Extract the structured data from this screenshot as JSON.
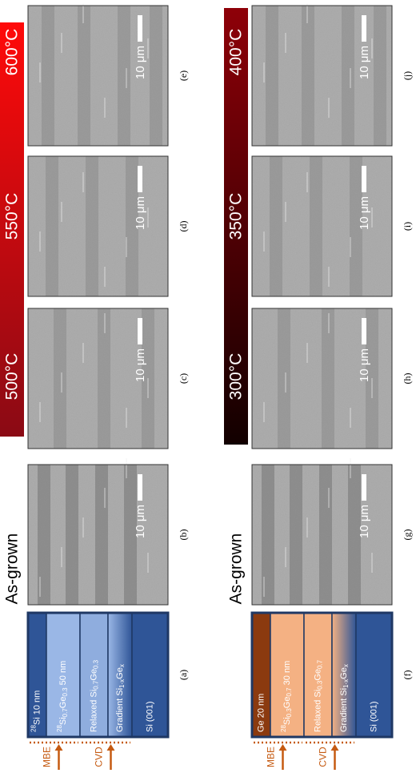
{
  "rows": [
    {
      "as_grown": "As-grown",
      "temperatures": [
        "500°C",
        "550°C",
        "600°C"
      ],
      "growth": [
        "MBE",
        "CVD"
      ],
      "schematic": {
        "label": "(a)",
        "layers": [
          {
            "parts": [
              {
                "t": "28",
                "s": "sup"
              },
              {
                "t": "Si   10 nm"
              }
            ]
          },
          {
            "parts": [
              {
                "t": "28",
                "s": "sup"
              },
              {
                "t": "Si"
              },
              {
                "t": "0.7",
                "s": "sub"
              },
              {
                "t": "Ge"
              },
              {
                "t": "0.3",
                "s": "sub"
              },
              {
                "t": "  50 nm"
              }
            ]
          },
          {
            "parts": [
              {
                "t": "Relaxed Si"
              },
              {
                "t": "0.7",
                "s": "sub"
              },
              {
                "t": "Ge"
              },
              {
                "t": "0.3",
                "s": "sub"
              }
            ]
          },
          {
            "parts": [
              {
                "t": "Gradient Si"
              },
              {
                "t": "1-x",
                "s": "sub"
              },
              {
                "t": "Ge"
              },
              {
                "t": "x",
                "s": "sub"
              }
            ]
          },
          {
            "parts": [
              {
                "t": "Si (001)"
              }
            ]
          }
        ]
      },
      "panels": [
        {
          "label": "(b)",
          "scale": "10 μm"
        },
        {
          "label": "(c)",
          "scale": "10 μm"
        },
        {
          "label": "(d)",
          "scale": "10 μm"
        },
        {
          "label": "(e)",
          "scale": "10 μm"
        }
      ]
    },
    {
      "as_grown": "As-grown",
      "temperatures": [
        "300°C",
        "350°C",
        "400°C"
      ],
      "growth": [
        "MBE",
        "CVD"
      ],
      "schematic": {
        "label": "(f)",
        "layers": [
          {
            "parts": [
              {
                "t": "Ge   20 nm"
              }
            ]
          },
          {
            "parts": [
              {
                "t": "28",
                "s": "sup"
              },
              {
                "t": "Si"
              },
              {
                "t": "0.3",
                "s": "sub"
              },
              {
                "t": "Ge"
              },
              {
                "t": "0.7",
                "s": "sub"
              },
              {
                "t": " 30 nm"
              }
            ]
          },
          {
            "parts": [
              {
                "t": "Relaxed Si"
              },
              {
                "t": "0.3",
                "s": "sub"
              },
              {
                "t": "Ge"
              },
              {
                "t": "0.7",
                "s": "sub"
              }
            ]
          },
          {
            "parts": [
              {
                "t": "Gradient Si"
              },
              {
                "t": "1-x",
                "s": "sub"
              },
              {
                "t": "Ge"
              },
              {
                "t": "x",
                "s": "sub"
              }
            ]
          },
          {
            "parts": [
              {
                "t": "Si (001)"
              }
            ]
          }
        ]
      },
      "panels": [
        {
          "label": "(g)",
          "scale": "10 μm"
        },
        {
          "label": "(h)",
          "scale": "10 μm"
        },
        {
          "label": "(i)",
          "scale": "10 μm"
        },
        {
          "label": "(j)",
          "scale": "10 μm"
        }
      ]
    }
  ]
}
